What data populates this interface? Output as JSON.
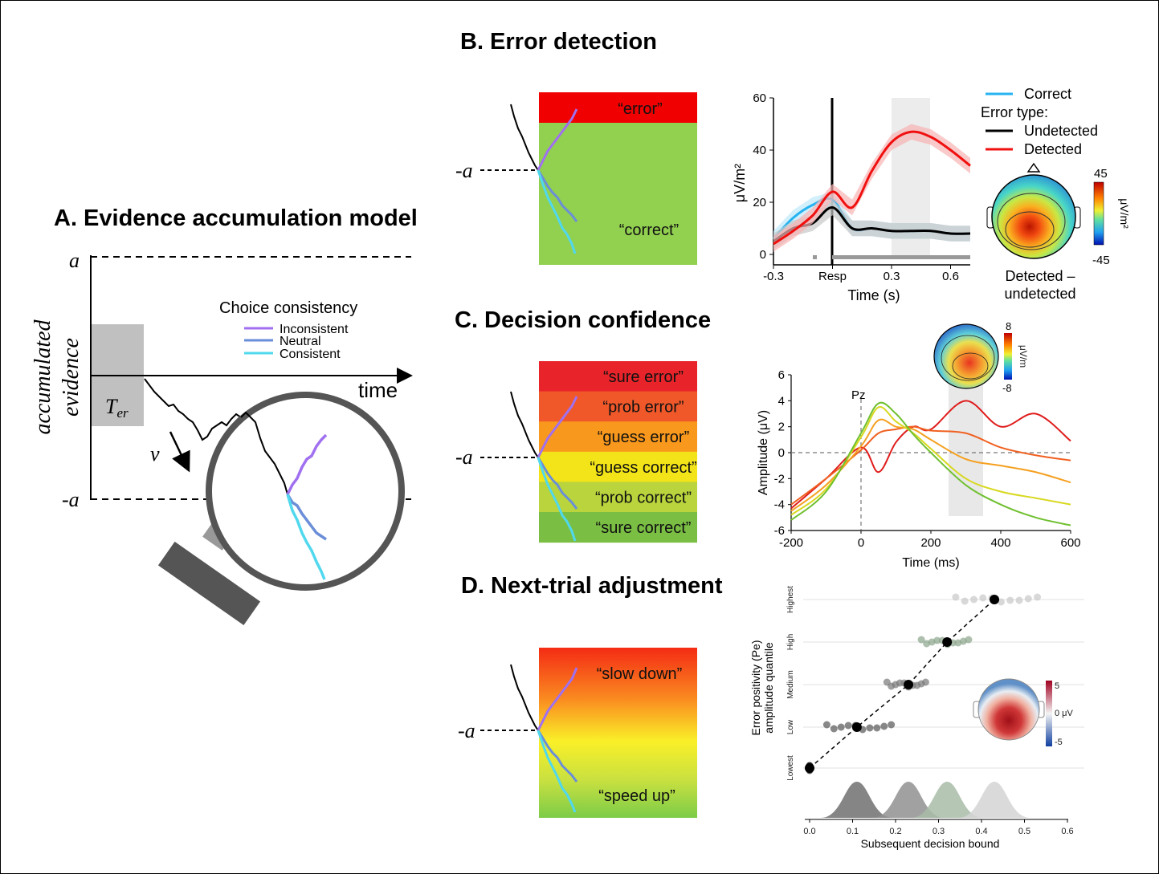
{
  "panelA": {
    "title": "A. Evidence accumulation model",
    "ylabel_line1": "accumulated",
    "ylabel_line2": "evidence",
    "bound_upper": "a",
    "bound_lower": "-a",
    "xlabel": "time",
    "ter": "T",
    "ter_sub": "er",
    "drift": "v",
    "legend_title": "Choice consistency",
    "legend": [
      "Inconsistent",
      "Neutral",
      "Consistent"
    ],
    "colors": {
      "inconsistent": "#a070f0",
      "neutral": "#6a8ed8",
      "consistent": "#50d8ee"
    }
  },
  "panelB": {
    "title": "B. Error detection",
    "bound": "-a",
    "zones": [
      "“error”",
      "“correct”"
    ],
    "legend": {
      "correct": "Correct",
      "error_type": "Error type:",
      "undetected": "Undetected",
      "detected": "Detected"
    },
    "ylabel": "μV/m²",
    "xlabel": "Time (s)",
    "yticks": [
      "0",
      "20",
      "40",
      "60"
    ],
    "xticks": [
      "-0.3",
      "Resp",
      "0.3",
      "0.6"
    ],
    "topo": {
      "max": "45",
      "min": "-45",
      "unit": "μV/m²",
      "caption1": "Detected –",
      "caption2": "undetected"
    }
  },
  "panelC": {
    "title": "C. Decision confidence",
    "bound": "-a",
    "zones": [
      "“sure error”",
      "“prob error”",
      "“guess error”",
      "“guess correct”",
      "“prob correct”",
      "“sure correct”"
    ],
    "ylabel": "Amplitude (μV)",
    "xlabel": "Time (ms)",
    "electrode": "Pz",
    "yticks": [
      "6",
      "4",
      "2",
      "0",
      "-2",
      "-4",
      "-6"
    ],
    "xticks": [
      "-200",
      "0",
      "200",
      "400",
      "600"
    ],
    "topo": {
      "max": "8",
      "min": "-8",
      "unit": "μV/m"
    }
  },
  "panelD": {
    "title": "D. Next-trial adjustment",
    "bound": "-a",
    "zones": [
      "“slow down”",
      "“speed up”"
    ],
    "ylabel_line1": "Error positivity (Pe)",
    "ylabel_line2": "amplitude quantile",
    "quantiles": [
      "Highest",
      "High",
      "Medium",
      "Low",
      "Lowest"
    ],
    "xlabel": "Subsequent decision bound",
    "xticks": [
      "0.0",
      "0.1",
      "0.2",
      "0.3",
      "0.4",
      "0.5",
      "0.6"
    ],
    "topo": {
      "max": "5",
      "mid": "0 μV",
      "min": "-5"
    }
  },
  "chart_data": [
    {
      "type": "line",
      "title": "",
      "xlabel": "Time (s)",
      "ylabel": "μV/m²",
      "xlim": [
        -0.3,
        0.7
      ],
      "ylim": [
        0,
        60
      ],
      "series": [
        {
          "name": "Correct",
          "x": [
            -0.3,
            -0.2,
            -0.1,
            0.0,
            0.1,
            0.2,
            0.3,
            0.4,
            0.5,
            0.6,
            0.7
          ],
          "y": [
            6,
            14,
            19,
            21,
            10,
            10,
            9,
            9,
            9,
            8,
            8
          ]
        },
        {
          "name": "Undetected",
          "x": [
            -0.3,
            -0.2,
            -0.1,
            0.0,
            0.1,
            0.2,
            0.3,
            0.4,
            0.5,
            0.6,
            0.7
          ],
          "y": [
            5,
            10,
            12,
            18,
            10,
            10,
            9,
            9,
            9,
            8,
            8
          ]
        },
        {
          "name": "Detected",
          "x": [
            -0.3,
            -0.2,
            -0.1,
            0.0,
            0.1,
            0.2,
            0.3,
            0.4,
            0.5,
            0.6,
            0.7
          ],
          "y": [
            4,
            9,
            15,
            24,
            18,
            32,
            43,
            47,
            45,
            40,
            34
          ]
        }
      ]
    },
    {
      "type": "line",
      "title": "",
      "xlabel": "Time (ms)",
      "ylabel": "Amplitude (μV)",
      "xlim": [
        -200,
        600
      ],
      "ylim": [
        -6,
        6
      ],
      "series": [
        {
          "x": [
            -200,
            -100,
            0,
            50,
            100,
            150,
            200,
            300,
            400,
            500,
            600
          ],
          "y": [
            -4.3,
            -2,
            0.4,
            -1.5,
            0.8,
            2,
            1.8,
            4,
            2,
            3,
            0.9
          ]
        },
        {
          "x": [
            -200,
            -100,
            0,
            50,
            100,
            150,
            200,
            300,
            400,
            500,
            600
          ],
          "y": [
            -4,
            -2,
            0.2,
            1.5,
            1.8,
            2,
            1.7,
            1.5,
            0.4,
            -0.2,
            -0.6
          ]
        },
        {
          "x": [
            -200,
            -100,
            0,
            50,
            100,
            150,
            200,
            300,
            400,
            500,
            600
          ],
          "y": [
            -4.5,
            -2.5,
            0.5,
            2.5,
            2,
            1.8,
            1,
            -0.5,
            -1,
            -1.5,
            -2.3
          ]
        },
        {
          "x": [
            -200,
            -100,
            0,
            50,
            100,
            150,
            200,
            300,
            400,
            500,
            600
          ],
          "y": [
            -4.8,
            -2.8,
            1.2,
            3.5,
            2.4,
            1.5,
            0.3,
            -2,
            -3,
            -3.5,
            -4
          ]
        },
        {
          "x": [
            -200,
            -100,
            0,
            50,
            100,
            150,
            200,
            300,
            400,
            500,
            600
          ],
          "y": [
            -5.2,
            -3,
            1.5,
            3.8,
            3,
            1.4,
            0,
            -2.5,
            -4,
            -5,
            -5.6
          ]
        }
      ]
    },
    {
      "type": "scatter",
      "title": "",
      "xlabel": "Subsequent decision bound",
      "ylabel": "Error positivity (Pe) amplitude quantile",
      "xlim": [
        0,
        0.6
      ],
      "categories": [
        "Lowest",
        "Low",
        "Medium",
        "High",
        "Highest"
      ],
      "series": [
        {
          "values": [
            0.0,
            0.11,
            0.23,
            0.32,
            0.43
          ]
        }
      ]
    }
  ]
}
